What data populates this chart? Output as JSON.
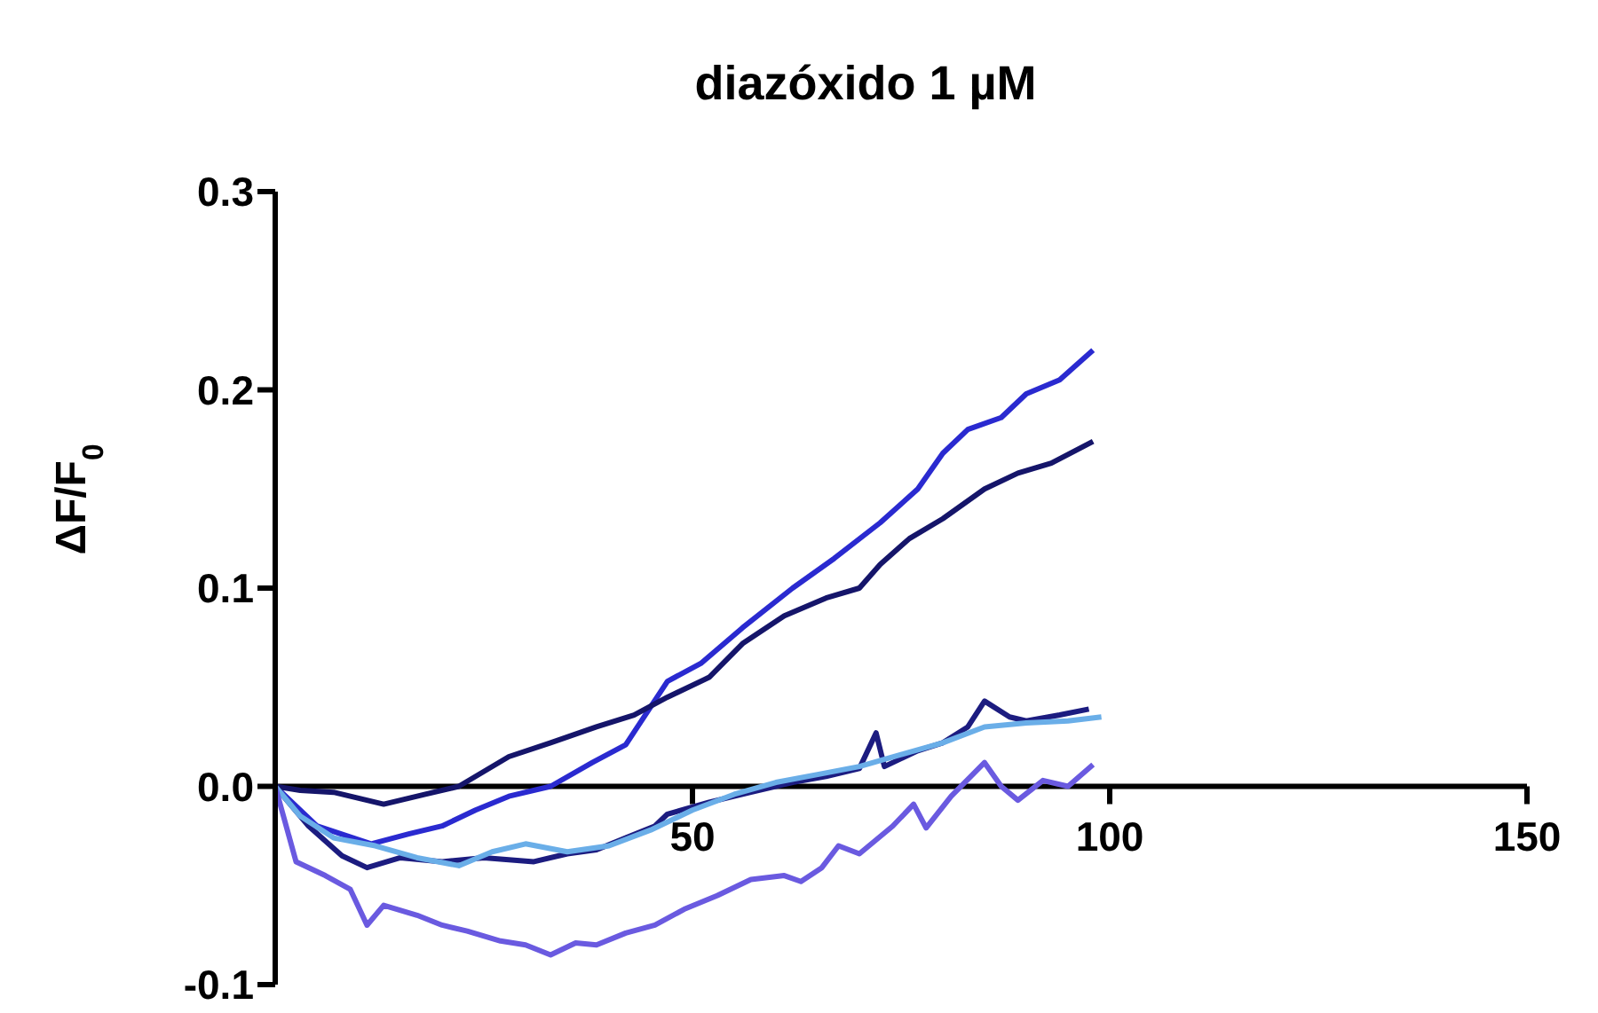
{
  "chart_data": {
    "type": "line",
    "title": "diazóxido 1 µM",
    "ylabel": "ΔF/F$_{0}$",
    "xlim": [
      0,
      150
    ],
    "xticks": [
      50,
      100,
      150
    ],
    "ylim": [
      -0.1,
      0.3
    ],
    "yticks": [
      -0.1,
      {
        "value": 0,
        "label": "0.0"
      },
      0.1,
      0.2,
      0.3
    ],
    "marker": "none",
    "line_style": "solid",
    "series": [
      {
        "color": "#2a2ad0",
        "x": [
          0,
          5,
          11.5,
          16,
          20,
          24,
          28,
          33,
          38,
          42,
          47,
          51,
          56,
          62,
          67,
          72.5,
          77,
          80,
          83,
          87,
          90,
          94,
          98
        ],
        "values": [
          0,
          -0.02,
          -0.029,
          -0.024,
          -0.02,
          -0.012,
          -0.005,
          0,
          0.012,
          0.021,
          0.053,
          0.062,
          0.08,
          0.1,
          0.115,
          0.133,
          0.15,
          0.168,
          0.18,
          0.186,
          0.198,
          0.205,
          0.22
        ]
      },
      {
        "color": "#15156a",
        "x": [
          0,
          3,
          7,
          13,
          18,
          22,
          28,
          33,
          38.5,
          43,
          47,
          52,
          56,
          61,
          66,
          70,
          72.5,
          76,
          80,
          85,
          89,
          93,
          98
        ],
        "values": [
          0,
          -0.002,
          -0.003,
          -0.009,
          -0.004,
          0,
          0.015,
          0.022,
          0.03,
          0.036,
          0.045,
          0.055,
          0.072,
          0.086,
          0.095,
          0.1,
          0.112,
          0.125,
          0.135,
          0.15,
          0.158,
          0.163,
          0.174
        ]
      },
      {
        "color": "#1c1c80",
        "x": [
          0,
          4,
          8,
          11,
          15,
          20,
          25,
          31,
          35,
          38.5,
          42,
          45.5,
          47,
          52,
          57,
          62,
          66,
          70,
          72,
          73,
          77,
          80,
          83,
          85,
          88,
          90,
          94,
          97.5
        ],
        "values": [
          0,
          -0.02,
          -0.035,
          -0.041,
          -0.036,
          -0.038,
          -0.036,
          -0.038,
          -0.034,
          -0.032,
          -0.026,
          -0.02,
          -0.014,
          -0.008,
          -0.003,
          0.002,
          0.005,
          0.009,
          0.027,
          0.01,
          0.018,
          0.022,
          0.03,
          0.043,
          0.035,
          0.033,
          0.036,
          0.039
        ]
      },
      {
        "color": "#6aaee8",
        "x": [
          0,
          3,
          7,
          12,
          17,
          22,
          26,
          30,
          35,
          40,
          45,
          50,
          55,
          60,
          65,
          70,
          75,
          80,
          85,
          90,
          95,
          99
        ],
        "values": [
          0,
          -0.015,
          -0.026,
          -0.03,
          -0.036,
          -0.04,
          -0.033,
          -0.029,
          -0.033,
          -0.03,
          -0.022,
          -0.012,
          -0.004,
          0.002,
          0.006,
          0.01,
          0.016,
          0.022,
          0.03,
          0.032,
          0.033,
          0.035
        ]
      },
      {
        "color": "#6a5ae0",
        "x": [
          0,
          2.5,
          6,
          9,
          11,
          13,
          17,
          20,
          23,
          27,
          30,
          33,
          36,
          38.5,
          42,
          45.5,
          49,
          53,
          57,
          61,
          63,
          65.5,
          67.5,
          70,
          74,
          76.5,
          78,
          81,
          85,
          87,
          89,
          92,
          95,
          98
        ],
        "values": [
          0,
          -0.038,
          -0.045,
          -0.052,
          -0.07,
          -0.06,
          -0.065,
          -0.07,
          -0.073,
          -0.078,
          -0.08,
          -0.085,
          -0.079,
          -0.08,
          -0.074,
          -0.07,
          -0.062,
          -0.055,
          -0.047,
          -0.045,
          -0.048,
          -0.041,
          -0.03,
          -0.034,
          -0.02,
          -0.009,
          -0.021,
          -0.005,
          0.012,
          0.0,
          -0.007,
          0.003,
          0.0,
          0.011
        ]
      }
    ]
  }
}
